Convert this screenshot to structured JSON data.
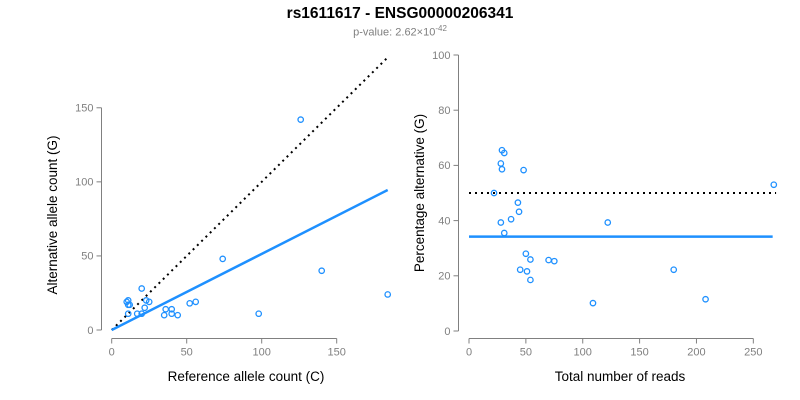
{
  "header": {
    "title": "rs1611617 - ENSG00000206341",
    "pvalue_prefix": "p-value: 2.62×10",
    "pvalue_exponent": "-42"
  },
  "colors": {
    "point": "#1E90FF",
    "fit_line": "#1E90FF",
    "reference_line": "#000000",
    "axis": "#808080",
    "tick_label": "#808080",
    "axis_title": "#000000",
    "subtitle": "#7F7F7F",
    "title": "#000000"
  },
  "chart_data": [
    {
      "type": "scatter",
      "name": "allele-counts-scatter",
      "xlabel": "Reference allele count (C)",
      "ylabel": "Alternative allele count (G)",
      "xticks": [
        0,
        50,
        100,
        150
      ],
      "yticks": [
        0,
        50,
        100,
        150
      ],
      "xlim": [
        0,
        187
      ],
      "ylim": [
        0,
        187
      ],
      "grid": false,
      "points": [
        [
          10,
          19
        ],
        [
          11,
          20
        ],
        [
          11,
          17
        ],
        [
          12,
          17
        ],
        [
          11,
          11
        ],
        [
          17,
          11
        ],
        [
          20,
          11
        ],
        [
          20,
          28
        ],
        [
          22,
          15
        ],
        [
          23,
          20
        ],
        [
          25,
          19
        ],
        [
          36,
          14
        ],
        [
          40,
          14
        ],
        [
          35,
          10
        ],
        [
          40,
          11
        ],
        [
          44,
          10
        ],
        [
          52,
          18
        ],
        [
          56,
          19
        ],
        [
          74,
          48
        ],
        [
          98,
          11
        ],
        [
          126,
          142
        ],
        [
          140,
          40
        ],
        [
          184,
          24
        ]
      ],
      "lines": [
        {
          "name": "identity-line",
          "style": "dotted",
          "color": "#000000",
          "x1": 0,
          "y1": 0,
          "x2": 185,
          "y2": 185
        },
        {
          "name": "fit-line",
          "style": "solid",
          "color": "#1E90FF",
          "x1": 0,
          "y1": 0,
          "x2": 184,
          "y2": 94.5
        }
      ]
    },
    {
      "type": "scatter",
      "name": "percentage-vs-reads-scatter",
      "xlabel": "Total number of reads",
      "ylabel": "Percentage alternative (G)",
      "xticks": [
        0,
        50,
        100,
        150,
        200,
        250
      ],
      "yticks": [
        0,
        20,
        40,
        60,
        80,
        100
      ],
      "xlim": [
        0,
        270
      ],
      "ylim": [
        0,
        100
      ],
      "grid": false,
      "points": [
        [
          29,
          65.5
        ],
        [
          31,
          64.5
        ],
        [
          28,
          60.7
        ],
        [
          29,
          58.6
        ],
        [
          22,
          50
        ],
        [
          48,
          58.3
        ],
        [
          43,
          46.5
        ],
        [
          44,
          43.2
        ],
        [
          37,
          40.5
        ],
        [
          28,
          39.3
        ],
        [
          31,
          35.5
        ],
        [
          122,
          39.3
        ],
        [
          50,
          28
        ],
        [
          54,
          25.9
        ],
        [
          70,
          25.7
        ],
        [
          75,
          25.3
        ],
        [
          45,
          22.2
        ],
        [
          51,
          21.6
        ],
        [
          54,
          18.5
        ],
        [
          180,
          22.2
        ],
        [
          109,
          10.1
        ],
        [
          268,
          53
        ],
        [
          208,
          11.5
        ]
      ],
      "lines": [
        {
          "name": "null-50pct-line",
          "style": "dotted",
          "color": "#000000",
          "x1": 0,
          "y1": 50,
          "x2": 270,
          "y2": 50
        },
        {
          "name": "mean-pct-line",
          "style": "solid",
          "color": "#1E90FF",
          "x1": 0,
          "y1": 34.2,
          "x2": 267,
          "y2": 34.2
        }
      ]
    }
  ]
}
